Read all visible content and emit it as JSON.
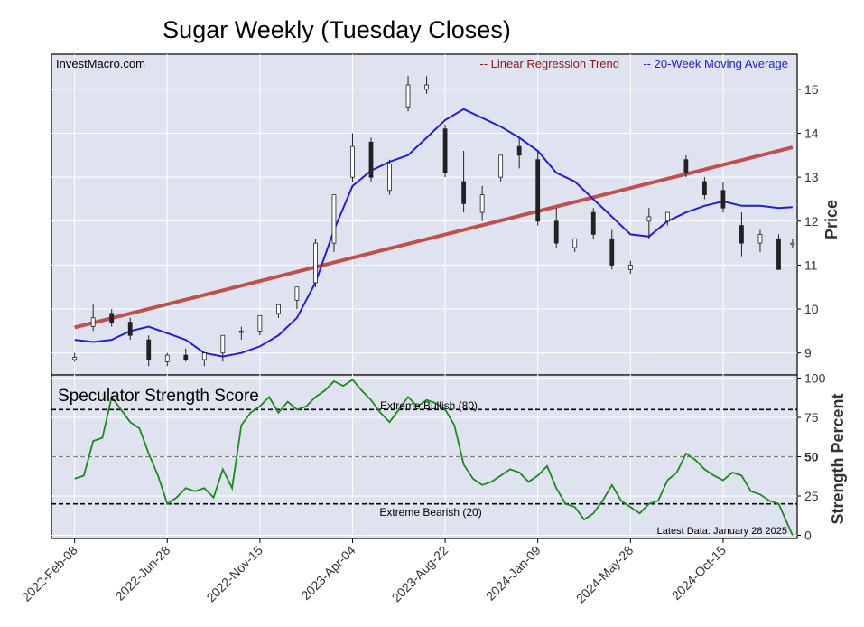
{
  "chart_data": [
    {
      "type": "candlestick",
      "title": "Sugar Weekly (Tuesday Closes)",
      "watermark": "InvestMacro.com",
      "ylabel": "Price",
      "ylim": [
        8.5,
        15.8
      ],
      "yticks": [
        9,
        10,
        11,
        12,
        13,
        14,
        15
      ],
      "x_range": [
        "2022-01-04",
        "2025-02-04"
      ],
      "xticks": [
        "2022-Feb-08",
        "2022-Jun-28",
        "2022-Nov-15",
        "2023-Apr-04",
        "2023-Aug-22",
        "2024-Jan-09",
        "2024-May-28",
        "2024-Oct-15"
      ],
      "legend_position": "top-right",
      "colors": {
        "plot_bg": "#dfe3ef",
        "up": "#ffffff",
        "down": "#222222",
        "ma": "#1f1fd6",
        "trend": "#c0504d",
        "trend_label": "#8b1a1a"
      },
      "series": [
        {
          "name": "-- Linear Regression Trend",
          "kind": "line",
          "x": [
            "2022-02-08",
            "2025-01-28"
          ],
          "y": [
            9.58,
            13.68
          ]
        },
        {
          "name": "-- 20-Week Moving Average",
          "kind": "line",
          "x": [
            "2022-02-08",
            "2022-03-08",
            "2022-04-05",
            "2022-05-03",
            "2022-05-31",
            "2022-06-28",
            "2022-07-26",
            "2022-08-23",
            "2022-09-20",
            "2022-10-18",
            "2022-11-15",
            "2022-12-13",
            "2023-01-10",
            "2023-02-07",
            "2023-03-07",
            "2023-04-04",
            "2023-05-02",
            "2023-05-30",
            "2023-06-27",
            "2023-07-25",
            "2023-08-22",
            "2023-09-19",
            "2023-10-17",
            "2023-11-14",
            "2023-12-12",
            "2024-01-09",
            "2024-02-06",
            "2024-03-05",
            "2024-04-02",
            "2024-04-30",
            "2024-05-28",
            "2024-06-25",
            "2024-07-23",
            "2024-08-20",
            "2024-09-17",
            "2024-10-15",
            "2024-11-12",
            "2024-12-10",
            "2025-01-07",
            "2025-01-28"
          ],
          "y": [
            9.3,
            9.25,
            9.3,
            9.5,
            9.6,
            9.45,
            9.3,
            9.0,
            8.92,
            9.0,
            9.15,
            9.4,
            9.8,
            10.6,
            11.8,
            12.8,
            13.15,
            13.35,
            13.5,
            13.9,
            14.3,
            14.55,
            14.35,
            14.15,
            13.9,
            13.6,
            13.1,
            12.9,
            12.5,
            12.1,
            11.7,
            11.65,
            12.0,
            12.2,
            12.35,
            12.45,
            12.35,
            12.35,
            12.3,
            12.32
          ]
        }
      ],
      "ohlc": {
        "x": [
          "2022-02-08",
          "2022-03-08",
          "2022-04-05",
          "2022-05-03",
          "2022-05-31",
          "2022-06-28",
          "2022-07-26",
          "2022-08-23",
          "2022-09-20",
          "2022-10-18",
          "2022-11-15",
          "2022-12-13",
          "2023-01-10",
          "2023-02-07",
          "2023-03-07",
          "2023-04-04",
          "2023-05-02",
          "2023-05-30",
          "2023-06-27",
          "2023-07-25",
          "2023-08-22",
          "2023-09-19",
          "2023-10-17",
          "2023-11-14",
          "2023-12-12",
          "2024-01-09",
          "2024-02-06",
          "2024-03-05",
          "2024-04-02",
          "2024-04-30",
          "2024-05-28",
          "2024-06-25",
          "2024-07-23",
          "2024-08-20",
          "2024-09-17",
          "2024-10-15",
          "2024-11-12",
          "2024-12-10",
          "2025-01-07",
          "2025-01-28"
        ],
        "open": [
          8.85,
          9.6,
          9.9,
          9.7,
          9.3,
          8.8,
          8.95,
          8.85,
          9.0,
          9.5,
          9.5,
          9.9,
          10.2,
          10.6,
          11.5,
          13.0,
          13.8,
          12.7,
          14.6,
          15.0,
          14.1,
          12.9,
          12.2,
          13.0,
          13.7,
          13.4,
          12.0,
          11.4,
          12.2,
          11.6,
          10.9,
          12.0,
          12.0,
          13.4,
          12.9,
          12.7,
          11.9,
          11.5,
          11.6,
          11.5
        ],
        "high": [
          9.0,
          10.1,
          10.0,
          9.8,
          9.4,
          9.0,
          9.1,
          9.0,
          9.1,
          9.6,
          9.6,
          10.0,
          10.3,
          11.6,
          12.6,
          14.0,
          13.9,
          13.4,
          15.3,
          15.3,
          14.2,
          13.6,
          12.8,
          13.2,
          13.9,
          13.6,
          12.3,
          11.6,
          12.3,
          11.8,
          11.1,
          12.3,
          12.2,
          13.5,
          13.0,
          12.9,
          12.2,
          11.8,
          11.7,
          11.6
        ],
        "low": [
          8.8,
          9.5,
          9.6,
          9.3,
          8.7,
          8.7,
          8.8,
          8.7,
          8.8,
          9.3,
          9.4,
          9.8,
          10.0,
          10.5,
          11.3,
          12.9,
          12.9,
          12.6,
          14.5,
          14.9,
          13.0,
          12.2,
          12.0,
          12.9,
          13.2,
          11.9,
          11.4,
          11.3,
          11.6,
          10.9,
          10.8,
          11.6,
          11.9,
          13.0,
          12.5,
          12.2,
          11.2,
          11.3,
          10.9,
          11.4
        ],
        "close": [
          8.9,
          9.8,
          9.7,
          9.4,
          8.85,
          8.95,
          8.85,
          9.0,
          9.4,
          9.5,
          9.85,
          10.1,
          10.5,
          11.5,
          12.6,
          13.7,
          13.0,
          13.3,
          15.1,
          15.1,
          13.1,
          12.4,
          12.6,
          13.5,
          13.5,
          12.0,
          11.5,
          11.6,
          11.7,
          11.0,
          11.0,
          12.1,
          12.2,
          13.1,
          12.6,
          12.3,
          11.5,
          11.7,
          10.9,
          11.5
        ]
      }
    },
    {
      "type": "line",
      "title": "Speculator Strength Score",
      "ylabel": "Strength Percent",
      "ylim": [
        -2,
        102
      ],
      "yticks": [
        0,
        25,
        50,
        75,
        100
      ],
      "colors": {
        "line": "#1a8a1a"
      },
      "reference_lines": [
        {
          "y": 80,
          "label": "Extreme Bullish (80)",
          "style": "dashed",
          "color": "#000000"
        },
        {
          "y": 50,
          "label": "",
          "style": "dashed",
          "color": "#808080"
        },
        {
          "y": 20,
          "label": "Extreme Bearish (20)",
          "style": "dashed",
          "color": "#000000"
        }
      ],
      "annotation": "Latest Data: January 28 2025",
      "series": [
        {
          "name": "",
          "x": [
            "2022-02-08",
            "2022-02-22",
            "2022-03-08",
            "2022-03-22",
            "2022-04-05",
            "2022-04-19",
            "2022-05-03",
            "2022-05-17",
            "2022-05-31",
            "2022-06-14",
            "2022-06-28",
            "2022-07-12",
            "2022-07-26",
            "2022-08-09",
            "2022-08-23",
            "2022-09-06",
            "2022-09-20",
            "2022-10-04",
            "2022-10-18",
            "2022-11-01",
            "2022-11-15",
            "2022-11-29",
            "2022-12-13",
            "2022-12-27",
            "2023-01-10",
            "2023-01-24",
            "2023-02-07",
            "2023-02-21",
            "2023-03-07",
            "2023-03-21",
            "2023-04-04",
            "2023-04-18",
            "2023-05-02",
            "2023-05-16",
            "2023-05-30",
            "2023-06-13",
            "2023-06-27",
            "2023-07-11",
            "2023-07-25",
            "2023-08-08",
            "2023-08-22",
            "2023-09-05",
            "2023-09-19",
            "2023-10-03",
            "2023-10-17",
            "2023-10-31",
            "2023-11-14",
            "2023-11-28",
            "2023-12-12",
            "2023-12-26",
            "2024-01-09",
            "2024-01-23",
            "2024-02-06",
            "2024-02-20",
            "2024-03-05",
            "2024-03-19",
            "2024-04-02",
            "2024-04-16",
            "2024-04-30",
            "2024-05-14",
            "2024-05-28",
            "2024-06-11",
            "2024-06-25",
            "2024-07-09",
            "2024-07-23",
            "2024-08-06",
            "2024-08-20",
            "2024-09-03",
            "2024-09-17",
            "2024-10-01",
            "2024-10-15",
            "2024-10-29",
            "2024-11-12",
            "2024-11-26",
            "2024-12-10",
            "2024-12-24",
            "2025-01-07",
            "2025-01-28"
          ],
          "y": [
            36,
            38,
            60,
            62,
            88,
            80,
            72,
            68,
            52,
            38,
            20,
            24,
            30,
            28,
            30,
            24,
            42,
            30,
            70,
            78,
            82,
            88,
            78,
            85,
            80,
            82,
            88,
            92,
            98,
            95,
            99,
            92,
            86,
            78,
            72,
            80,
            88,
            82,
            86,
            84,
            80,
            70,
            45,
            36,
            32,
            34,
            38,
            42,
            40,
            34,
            38,
            44,
            30,
            20,
            18,
            10,
            14,
            22,
            32,
            22,
            18,
            14,
            20,
            22,
            35,
            40,
            52,
            48,
            42,
            38,
            35,
            40,
            38,
            28,
            26,
            22,
            20,
            0
          ]
        }
      ]
    }
  ]
}
